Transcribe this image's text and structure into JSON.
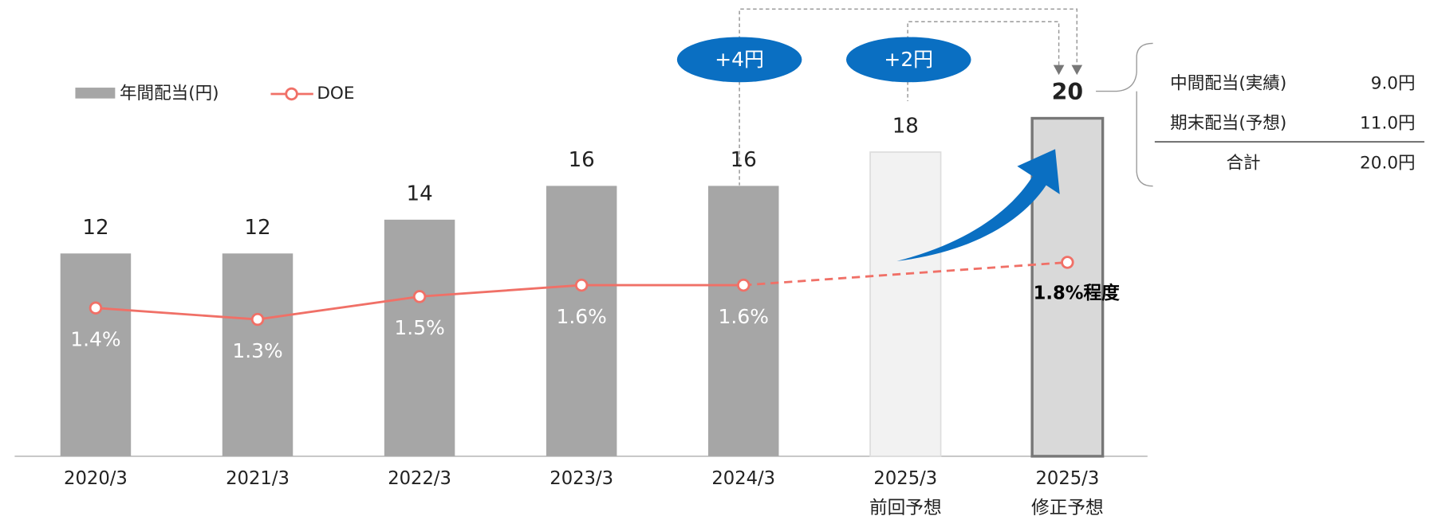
{
  "chart_data": {
    "type": "bar",
    "categories": [
      "2020/3",
      "2021/3",
      "2022/3",
      "2023/3",
      "2024/3",
      "2025/3",
      "2025/3"
    ],
    "category_notes": [
      null,
      null,
      null,
      null,
      null,
      "前回予想",
      "修正予想"
    ],
    "ylim": [
      0,
      27
    ],
    "y2lim": [
      0.1,
      4.1
    ],
    "series": [
      {
        "name": "年間配当(円)",
        "type": "bar",
        "color": "#a6a6a6",
        "colors": [
          "#a6a6a6",
          "#a6a6a6",
          "#a6a6a6",
          "#a6a6a6",
          "#a6a6a6",
          "#f2f2f2",
          "#d9d9d9"
        ],
        "values": [
          12,
          12,
          14,
          16,
          16,
          18,
          20
        ]
      },
      {
        "name": "DOE",
        "type": "line",
        "axis": "y2",
        "color": "#f07067",
        "values": [
          1.4,
          1.3,
          1.5,
          1.6,
          1.6,
          null,
          1.8
        ],
        "value_labels": [
          "1.4%",
          "1.3%",
          "1.5%",
          "1.6%",
          "1.6%",
          null,
          "1.8%程度"
        ]
      }
    ],
    "annotations": [
      "+4円",
      "+2円"
    ],
    "breakdown": {
      "rows": [
        [
          "中間配当(実績)",
          "9.0円"
        ],
        [
          "期末配当(予想)",
          "11.0円"
        ],
        [
          "合計",
          "20.0円"
        ]
      ]
    }
  }
}
